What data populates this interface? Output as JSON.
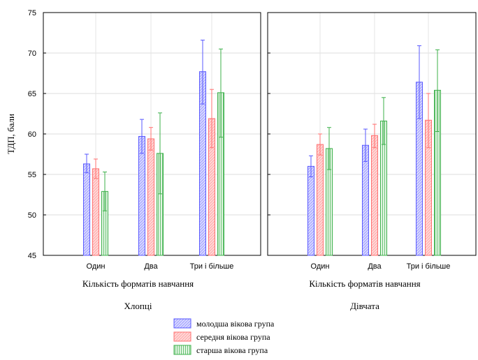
{
  "chart_data": {
    "type": "bar",
    "error_bars": true,
    "ylabel": "ТДП, бали",
    "ylim": [
      45,
      75
    ],
    "yticks": [
      "45",
      "50",
      "55",
      "60",
      "65",
      "70",
      "75"
    ],
    "grid": true,
    "legend_position": "bottom-center",
    "categories": [
      "Один",
      "Два",
      "Три і більше"
    ],
    "panels": [
      {
        "title": "Хлопці",
        "xlabel": "Кількість форматів навчання",
        "series": [
          {
            "name": "молодша вікова група",
            "values": [
              56.3,
              59.7,
              67.7
            ],
            "ci_low": [
              55.2,
              57.6,
              63.7
            ],
            "ci_high": [
              57.5,
              61.8,
              71.6
            ]
          },
          {
            "name": "середня вікова група",
            "values": [
              55.7,
              59.4,
              61.9
            ],
            "ci_low": [
              54.5,
              58.0,
              58.3
            ],
            "ci_high": [
              56.9,
              60.8,
              65.5
            ]
          },
          {
            "name": "старша вікова група",
            "values": [
              52.9,
              57.6,
              65.1
            ],
            "ci_low": [
              50.5,
              52.6,
              59.6
            ],
            "ci_high": [
              55.3,
              62.6,
              70.5
            ]
          }
        ]
      },
      {
        "title": "Дівчата",
        "xlabel": "Кількість форматів навчання",
        "series": [
          {
            "name": "молодша вікова група",
            "values": [
              56.0,
              58.6,
              66.4
            ],
            "ci_low": [
              54.7,
              56.6,
              61.9
            ],
            "ci_high": [
              57.3,
              60.6,
              70.9
            ]
          },
          {
            "name": "середня вікова група",
            "values": [
              58.7,
              59.8,
              61.7
            ],
            "ci_low": [
              57.4,
              58.3,
              58.3
            ],
            "ci_high": [
              60.0,
              61.2,
              65.0
            ]
          },
          {
            "name": "старша вікова група",
            "values": [
              58.2,
              61.6,
              65.4
            ],
            "ci_low": [
              55.6,
              58.7,
              60.3
            ],
            "ci_high": [
              60.8,
              64.5,
              70.4
            ]
          }
        ]
      }
    ],
    "colors": {
      "fills": [
        "#c8c8ff",
        "#ffc8c8",
        "#c8f0c8"
      ],
      "strokes": [
        "#5a5aff",
        "#ff7070",
        "#3cb04a"
      ]
    }
  }
}
